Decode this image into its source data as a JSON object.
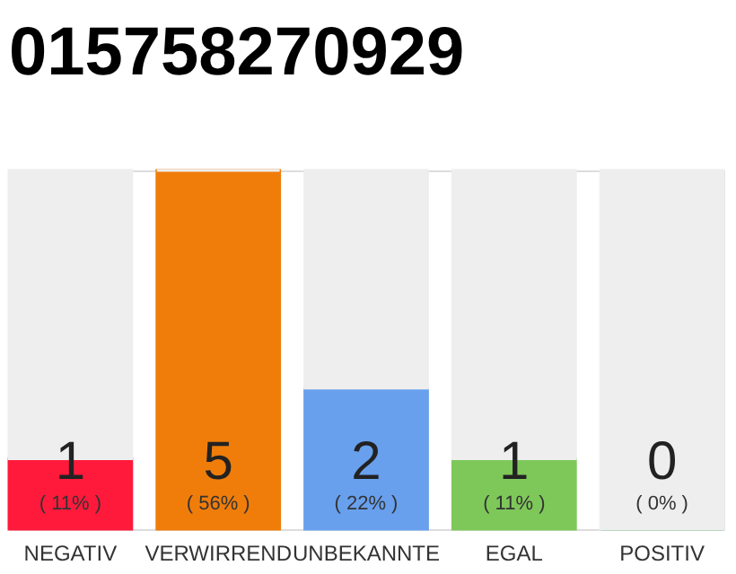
{
  "chart_data": {
    "type": "bar",
    "title": "015758270929",
    "categories": [
      "NEGATIV",
      "VERWIRREND",
      "UNBEKANNTE",
      "EGAL",
      "POSITIV"
    ],
    "stacked": true,
    "series": [
      {
        "colors": [
          "#ff1a3c",
          "#f07d0a",
          "#68a0ee",
          "#7ec85a",
          "#2eaa4a"
        ],
        "values": [
          11,
          56,
          22,
          11,
          0
        ],
        "value_labels": [
          "( 11% )",
          "( 56% )",
          "( 22% )",
          "( 11% )",
          "( 0% )"
        ]
      },
      {
        "color": "#eeeeee",
        "values": [
          45,
          0,
          34,
          45,
          56
        ]
      }
    ],
    "annotations": [
      "1",
      "5",
      "2",
      "1",
      "0"
    ]
  }
}
